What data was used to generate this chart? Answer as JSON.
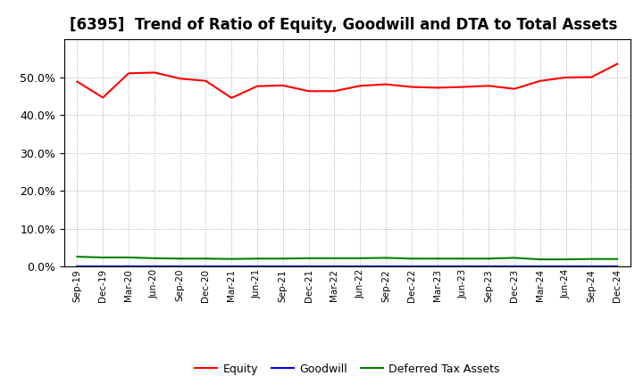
{
  "title": "[6395]  Trend of Ratio of Equity, Goodwill and DTA to Total Assets",
  "x_labels": [
    "Sep-19",
    "Dec-19",
    "Mar-20",
    "Jun-20",
    "Sep-20",
    "Dec-20",
    "Mar-21",
    "Jun-21",
    "Sep-21",
    "Dec-21",
    "Mar-22",
    "Jun-22",
    "Sep-22",
    "Dec-22",
    "Mar-23",
    "Jun-23",
    "Sep-23",
    "Dec-23",
    "Mar-24",
    "Jun-24",
    "Sep-24",
    "Dec-24"
  ],
  "equity": [
    0.488,
    0.446,
    0.51,
    0.512,
    0.496,
    0.49,
    0.445,
    0.476,
    0.478,
    0.463,
    0.463,
    0.477,
    0.481,
    0.474,
    0.472,
    0.474,
    0.477,
    0.469,
    0.49,
    0.499,
    0.5,
    0.535
  ],
  "goodwill": [
    0.0,
    0.0,
    0.0,
    0.0,
    0.0,
    0.0,
    0.0,
    0.0,
    0.0,
    0.0,
    0.0,
    0.0,
    0.0,
    0.0,
    0.0,
    0.0,
    0.0,
    0.0,
    0.0,
    0.0,
    0.0,
    0.0
  ],
  "dta": [
    0.026,
    0.024,
    0.024,
    0.022,
    0.021,
    0.021,
    0.02,
    0.021,
    0.021,
    0.022,
    0.022,
    0.022,
    0.023,
    0.021,
    0.021,
    0.021,
    0.021,
    0.023,
    0.019,
    0.019,
    0.02,
    0.02
  ],
  "equity_color": "#FF0000",
  "goodwill_color": "#0000FF",
  "dta_color": "#008000",
  "background_color": "#FFFFFF",
  "plot_bg_color": "#FFFFFF",
  "grid_color": "#AAAAAA",
  "ylim": [
    0.0,
    0.6
  ],
  "yticks": [
    0.0,
    0.1,
    0.2,
    0.3,
    0.4,
    0.5
  ],
  "title_fontsize": 12,
  "legend_labels": [
    "Equity",
    "Goodwill",
    "Deferred Tax Assets"
  ]
}
